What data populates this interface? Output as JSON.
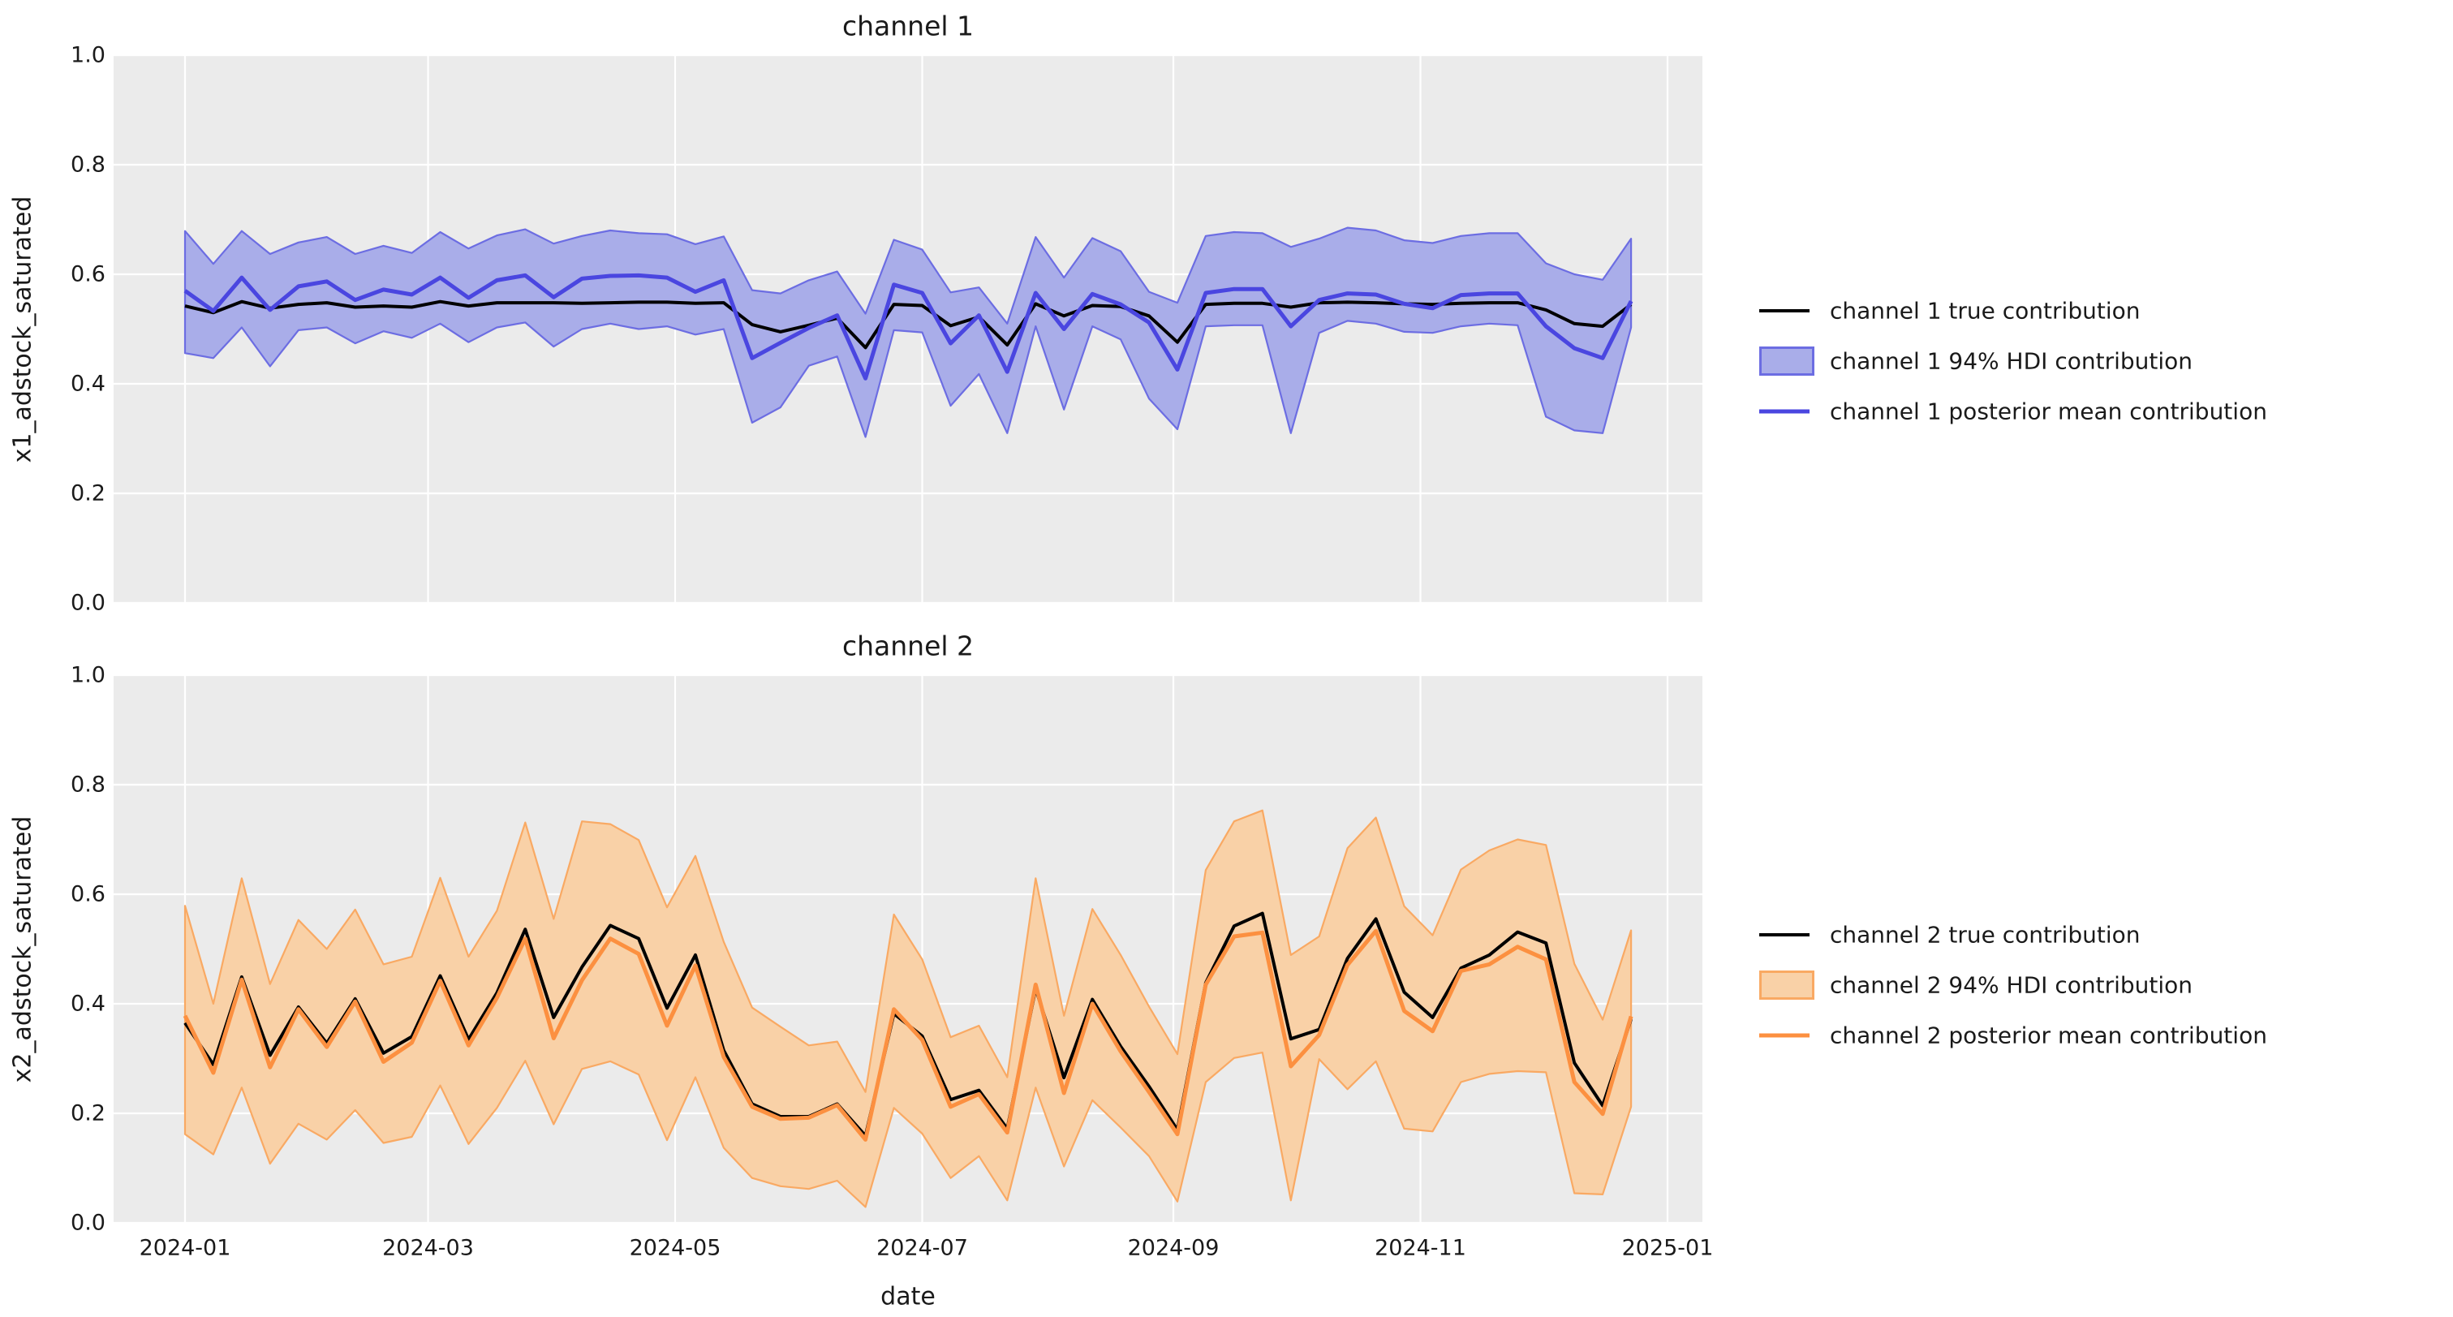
{
  "figure": {
    "background": "#ffffff",
    "panel_background": "#ebebeb",
    "gridline_color": "#ffffff",
    "text_color": "#1a1a1a"
  },
  "y_axis": {
    "ticks": [
      "0.0",
      "0.2",
      "0.4",
      "0.6",
      "0.8",
      "1.0"
    ]
  },
  "x_axis": {
    "label": "date",
    "tick_labels": [
      "2024-01",
      "2024-03",
      "2024-05",
      "2024-07",
      "2024-09",
      "2024-11",
      "2025-01"
    ],
    "tick_day_offsets": [
      0,
      60,
      121,
      182,
      244,
      305,
      366
    ],
    "total_days": 366,
    "points_step_days": 7,
    "n_points": 52
  },
  "chart_data": [
    {
      "type": "line",
      "title": "channel 1",
      "ylabel": "x1_adstock_saturated",
      "xlabel": "date",
      "ylim": [
        0.0,
        1.0
      ],
      "grid": true,
      "legend_position": "right",
      "legend": [
        "channel 1 true contribution",
        "channel 1 94% HDI contribution",
        "channel 1 posterior mean contribution"
      ],
      "colors": {
        "true_line": "#000000",
        "mean_line": "#4a46e0",
        "band_fill": "#a9ade9",
        "band_edge": "#6c6de2"
      },
      "x_tick_labels": [
        "2024-01",
        "2024-03",
        "2024-05",
        "2024-07",
        "2024-09",
        "2024-11",
        "2025-01"
      ],
      "series": [
        {
          "name": "true",
          "values": [
            0.542,
            0.53,
            0.55,
            0.538,
            0.545,
            0.548,
            0.54,
            0.542,
            0.54,
            0.55,
            0.542,
            0.548,
            0.548,
            0.548,
            0.547,
            0.548,
            0.549,
            0.549,
            0.547,
            0.548,
            0.508,
            0.495,
            0.507,
            0.52,
            0.466,
            0.545,
            0.543,
            0.506,
            0.522,
            0.471,
            0.546,
            0.524,
            0.543,
            0.541,
            0.524,
            0.476,
            0.545,
            0.547,
            0.547,
            0.54,
            0.548,
            0.549,
            0.548,
            0.546,
            0.545,
            0.547,
            0.548,
            0.548,
            0.535,
            0.51,
            0.505,
            0.545
          ]
        },
        {
          "name": "posterior_mean",
          "values": [
            0.57,
            0.533,
            0.594,
            0.535,
            0.578,
            0.587,
            0.553,
            0.572,
            0.563,
            0.594,
            0.557,
            0.589,
            0.598,
            0.558,
            0.592,
            0.597,
            0.598,
            0.594,
            0.568,
            0.589,
            0.447,
            0.475,
            0.502,
            0.525,
            0.41,
            0.581,
            0.566,
            0.474,
            0.525,
            0.422,
            0.566,
            0.5,
            0.564,
            0.545,
            0.512,
            0.426,
            0.566,
            0.573,
            0.573,
            0.505,
            0.553,
            0.565,
            0.563,
            0.546,
            0.538,
            0.562,
            0.565,
            0.565,
            0.505,
            0.465,
            0.447,
            0.551
          ]
        },
        {
          "name": "hdi_94_high",
          "values": [
            0.679,
            0.619,
            0.679,
            0.637,
            0.658,
            0.668,
            0.637,
            0.652,
            0.639,
            0.677,
            0.647,
            0.671,
            0.682,
            0.656,
            0.67,
            0.68,
            0.675,
            0.673,
            0.655,
            0.669,
            0.571,
            0.565,
            0.589,
            0.605,
            0.528,
            0.663,
            0.645,
            0.567,
            0.576,
            0.51,
            0.668,
            0.594,
            0.666,
            0.642,
            0.568,
            0.548,
            0.67,
            0.677,
            0.675,
            0.65,
            0.665,
            0.685,
            0.68,
            0.662,
            0.657,
            0.67,
            0.675,
            0.675,
            0.62,
            0.6,
            0.59,
            0.665
          ]
        },
        {
          "name": "hdi_94_low",
          "values": [
            0.456,
            0.447,
            0.503,
            0.432,
            0.498,
            0.503,
            0.474,
            0.496,
            0.484,
            0.51,
            0.476,
            0.503,
            0.512,
            0.468,
            0.5,
            0.51,
            0.5,
            0.505,
            0.49,
            0.5,
            0.329,
            0.357,
            0.433,
            0.45,
            0.303,
            0.498,
            0.494,
            0.36,
            0.418,
            0.31,
            0.505,
            0.353,
            0.505,
            0.481,
            0.373,
            0.317,
            0.505,
            0.507,
            0.507,
            0.31,
            0.493,
            0.515,
            0.51,
            0.495,
            0.493,
            0.505,
            0.51,
            0.507,
            0.34,
            0.315,
            0.31,
            0.503
          ]
        }
      ]
    },
    {
      "type": "line",
      "title": "channel 2",
      "ylabel": "x2_adstock_saturated",
      "xlabel": "date",
      "ylim": [
        0.0,
        1.0
      ],
      "grid": true,
      "legend_position": "right",
      "legend": [
        "channel 2 true contribution",
        "channel 2 94% HDI contribution",
        "channel 2 posterior mean contribution"
      ],
      "colors": {
        "true_line": "#000000",
        "mean_line": "#fc9040",
        "band_fill": "#f9d1a7",
        "band_edge": "#f9a963"
      },
      "x_tick_labels": [
        "2024-01",
        "2024-03",
        "2024-05",
        "2024-07",
        "2024-09",
        "2024-11",
        "2025-01"
      ],
      "series": [
        {
          "name": "true",
          "values": [
            0.365,
            0.289,
            0.449,
            0.306,
            0.394,
            0.328,
            0.409,
            0.31,
            0.34,
            0.451,
            0.335,
            0.42,
            0.536,
            0.375,
            0.467,
            0.543,
            0.519,
            0.392,
            0.489,
            0.315,
            0.217,
            0.194,
            0.194,
            0.217,
            0.159,
            0.382,
            0.341,
            0.225,
            0.242,
            0.172,
            0.428,
            0.265,
            0.408,
            0.322,
            0.249,
            0.17,
            0.438,
            0.542,
            0.565,
            0.336,
            0.353,
            0.483,
            0.555,
            0.421,
            0.375,
            0.465,
            0.489,
            0.531,
            0.511,
            0.292,
            0.214,
            0.372
          ]
        },
        {
          "name": "posterior_mean",
          "values": [
            0.378,
            0.274,
            0.444,
            0.284,
            0.39,
            0.321,
            0.404,
            0.294,
            0.329,
            0.442,
            0.324,
            0.411,
            0.519,
            0.337,
            0.443,
            0.519,
            0.491,
            0.36,
            0.47,
            0.303,
            0.212,
            0.19,
            0.192,
            0.215,
            0.152,
            0.39,
            0.334,
            0.212,
            0.235,
            0.165,
            0.435,
            0.237,
            0.4,
            0.313,
            0.239,
            0.162,
            0.435,
            0.523,
            0.53,
            0.286,
            0.343,
            0.471,
            0.533,
            0.387,
            0.35,
            0.46,
            0.472,
            0.504,
            0.481,
            0.257,
            0.199,
            0.377
          ]
        },
        {
          "name": "hdi_94_high",
          "values": [
            0.579,
            0.4,
            0.629,
            0.436,
            0.553,
            0.5,
            0.572,
            0.472,
            0.486,
            0.63,
            0.486,
            0.57,
            0.731,
            0.555,
            0.733,
            0.728,
            0.699,
            0.576,
            0.67,
            0.513,
            0.393,
            0.358,
            0.324,
            0.331,
            0.239,
            0.563,
            0.481,
            0.339,
            0.36,
            0.266,
            0.629,
            0.378,
            0.573,
            0.489,
            0.395,
            0.308,
            0.644,
            0.733,
            0.753,
            0.489,
            0.523,
            0.684,
            0.74,
            0.578,
            0.525,
            0.645,
            0.68,
            0.7,
            0.69,
            0.473,
            0.371,
            0.534
          ]
        },
        {
          "name": "hdi_94_low",
          "values": [
            0.162,
            0.125,
            0.247,
            0.108,
            0.181,
            0.152,
            0.206,
            0.146,
            0.157,
            0.251,
            0.144,
            0.21,
            0.296,
            0.18,
            0.281,
            0.295,
            0.271,
            0.151,
            0.266,
            0.137,
            0.082,
            0.067,
            0.062,
            0.077,
            0.029,
            0.21,
            0.163,
            0.082,
            0.122,
            0.041,
            0.247,
            0.103,
            0.224,
            0.174,
            0.122,
            0.039,
            0.257,
            0.301,
            0.311,
            0.041,
            0.299,
            0.244,
            0.295,
            0.172,
            0.167,
            0.257,
            0.272,
            0.277,
            0.275,
            0.054,
            0.052,
            0.212
          ]
        }
      ]
    }
  ]
}
